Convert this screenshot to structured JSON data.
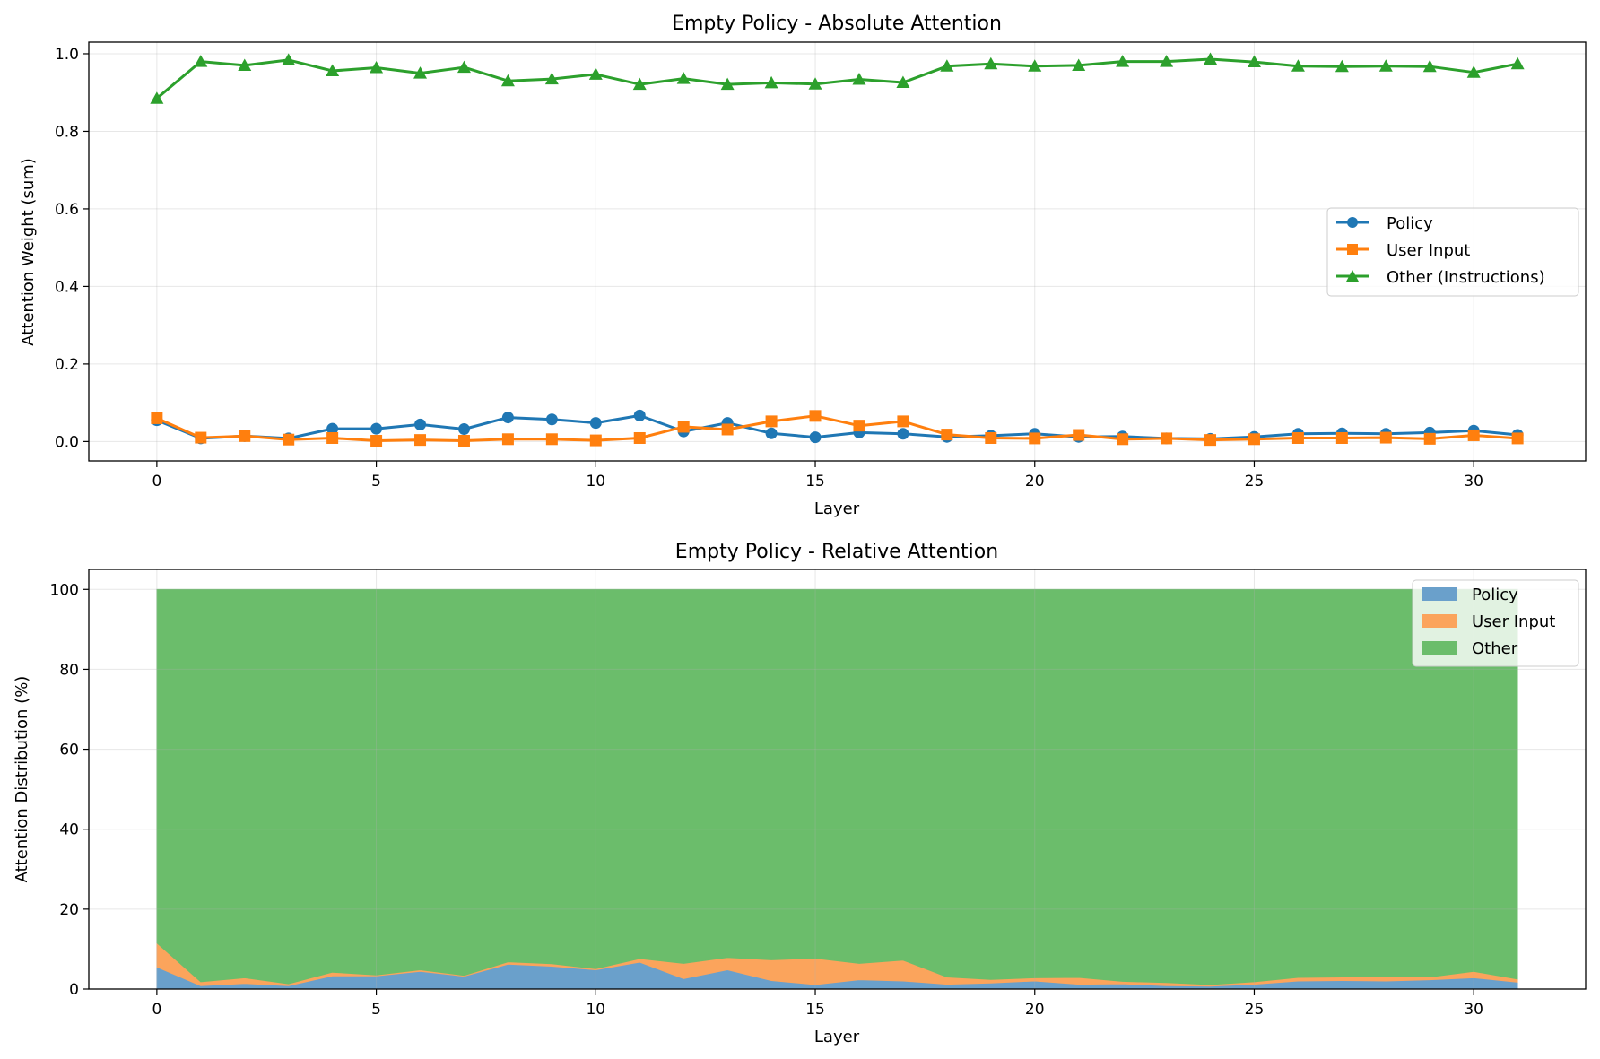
{
  "chart_data": [
    {
      "type": "line",
      "title": "Empty Policy - Absolute Attention",
      "xlabel": "Layer",
      "ylabel": "Attention Weight (sum)",
      "xlim": [
        -1.55,
        32.55
      ],
      "ylim": [
        -0.05,
        1.03
      ],
      "xticks": [
        0,
        5,
        10,
        15,
        20,
        25,
        30
      ],
      "yticks": [
        0.0,
        0.2,
        0.4,
        0.6,
        0.8,
        1.0
      ],
      "ytick_labels": [
        "0.0",
        "0.2",
        "0.4",
        "0.6",
        "0.8",
        "1.0"
      ],
      "grid": true,
      "legend_position": "center-right",
      "x": [
        0,
        1,
        2,
        3,
        4,
        5,
        6,
        7,
        8,
        9,
        10,
        11,
        12,
        13,
        14,
        15,
        16,
        17,
        18,
        19,
        20,
        21,
        22,
        23,
        24,
        25,
        26,
        27,
        28,
        29,
        30,
        31
      ],
      "series": [
        {
          "name": "Policy",
          "color": "#1f77b4",
          "marker": "circle",
          "values": [
            0.055,
            0.008,
            0.014,
            0.008,
            0.033,
            0.033,
            0.044,
            0.032,
            0.062,
            0.057,
            0.048,
            0.067,
            0.026,
            0.048,
            0.021,
            0.011,
            0.023,
            0.02,
            0.012,
            0.015,
            0.02,
            0.012,
            0.013,
            0.008,
            0.007,
            0.012,
            0.02,
            0.021,
            0.02,
            0.023,
            0.028,
            0.017
          ]
        },
        {
          "name": "User Input",
          "color": "#ff7f0e",
          "marker": "square",
          "values": [
            0.06,
            0.01,
            0.014,
            0.005,
            0.009,
            0.002,
            0.004,
            0.002,
            0.006,
            0.006,
            0.003,
            0.009,
            0.038,
            0.031,
            0.052,
            0.066,
            0.041,
            0.052,
            0.018,
            0.009,
            0.008,
            0.017,
            0.006,
            0.008,
            0.004,
            0.006,
            0.009,
            0.009,
            0.01,
            0.007,
            0.016,
            0.008
          ]
        },
        {
          "name": "Other (Instructions)",
          "color": "#2ca02c",
          "marker": "triangle",
          "values": [
            0.885,
            0.98,
            0.97,
            0.984,
            0.956,
            0.964,
            0.95,
            0.965,
            0.93,
            0.935,
            0.947,
            0.921,
            0.936,
            0.921,
            0.925,
            0.922,
            0.934,
            0.926,
            0.968,
            0.974,
            0.968,
            0.97,
            0.98,
            0.98,
            0.986,
            0.979,
            0.968,
            0.967,
            0.968,
            0.967,
            0.952,
            0.974
          ]
        }
      ]
    },
    {
      "type": "area",
      "stacked": true,
      "title": "Empty Policy - Relative Attention",
      "xlabel": "Layer",
      "ylabel": "Attention Distribution (%)",
      "xlim": [
        -1.55,
        32.55
      ],
      "ylim": [
        0,
        105
      ],
      "xticks": [
        0,
        5,
        10,
        15,
        20,
        25,
        30
      ],
      "yticks": [
        0,
        20,
        40,
        60,
        80,
        100
      ],
      "ytick_labels": [
        "0",
        "20",
        "40",
        "60",
        "80",
        "100"
      ],
      "grid": true,
      "legend_position": "top-right",
      "x": [
        0,
        1,
        2,
        3,
        4,
        5,
        6,
        7,
        8,
        9,
        10,
        11,
        12,
        13,
        14,
        15,
        16,
        17,
        18,
        19,
        20,
        21,
        22,
        23,
        24,
        25,
        26,
        27,
        28,
        29,
        30,
        31
      ],
      "series": [
        {
          "name": "Policy",
          "color": "#6aa0cb",
          "values": [
            5.5,
            0.8,
            1.4,
            0.8,
            3.3,
            3.3,
            4.4,
            3.2,
            6.2,
            5.7,
            4.8,
            6.7,
            2.6,
            4.8,
            2.1,
            1.1,
            2.3,
            2.0,
            1.2,
            1.5,
            2.0,
            1.2,
            1.3,
            0.8,
            0.7,
            1.2,
            2.0,
            2.1,
            2.0,
            2.3,
            2.8,
            1.7
          ]
        },
        {
          "name": "User Input",
          "color": "#fba45c",
          "values": [
            6.0,
            1.0,
            1.4,
            0.5,
            0.9,
            0.2,
            0.4,
            0.2,
            0.6,
            0.6,
            0.3,
            0.9,
            3.8,
            3.1,
            5.2,
            6.6,
            4.1,
            5.2,
            1.8,
            0.9,
            0.8,
            1.7,
            0.6,
            0.8,
            0.4,
            0.6,
            0.9,
            0.9,
            1.0,
            0.7,
            1.6,
            0.8
          ]
        },
        {
          "name": "Other",
          "color": "#6bbd6b",
          "values": [
            88.5,
            98.2,
            97.2,
            98.7,
            95.8,
            96.5,
            95.2,
            96.6,
            93.2,
            93.7,
            94.9,
            92.4,
            93.6,
            92.1,
            92.7,
            92.3,
            93.6,
            92.8,
            97.0,
            97.6,
            97.2,
            97.1,
            98.1,
            98.4,
            98.9,
            98.2,
            97.1,
            97.0,
            97.0,
            97.0,
            95.6,
            97.5
          ]
        }
      ]
    }
  ]
}
